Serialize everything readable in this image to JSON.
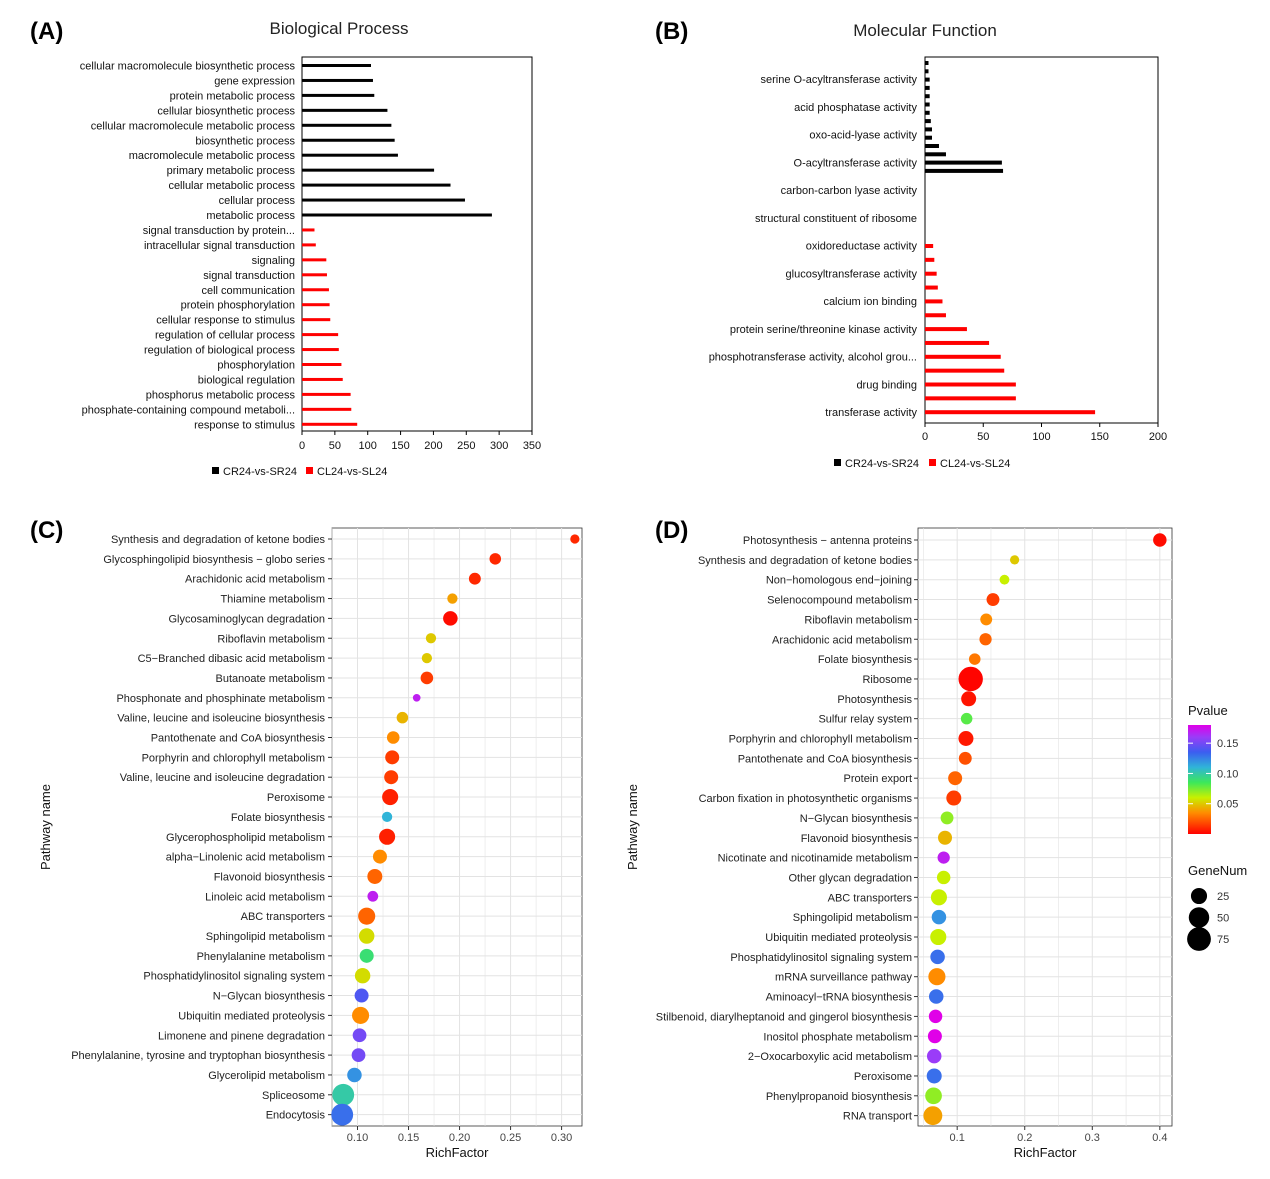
{
  "panels": [
    {
      "label": "(A)"
    },
    {
      "label": "(B)"
    },
    {
      "label": "(C)"
    },
    {
      "label": "(D)"
    }
  ],
  "chart_data": [
    {
      "type": "bar",
      "orientation": "horizontal",
      "title": "Biological Process",
      "xlabel": "",
      "ylabel": "",
      "xlim": [
        0,
        350
      ],
      "xticks": [
        0,
        50,
        100,
        150,
        200,
        250,
        300,
        350
      ],
      "legend": {
        "position": "bottom",
        "entries": [
          "CR24-vs-SR24",
          "CL24-vs-SL24"
        ]
      },
      "series": [
        {
          "name": "CR24-vs-SR24",
          "color": "#000000",
          "categories": [
            "cellular macromolecule biosynthetic process",
            "gene expression",
            "protein metabolic process",
            "cellular biosynthetic process",
            "cellular macromolecule metabolic process",
            "biosynthetic process",
            "macromolecule metabolic process",
            "primary metabolic process",
            "cellular metabolic process",
            "cellular process",
            "metabolic process"
          ],
          "values": [
            105,
            108,
            110,
            130,
            136,
            141,
            146,
            201,
            226,
            248,
            289
          ]
        },
        {
          "name": "CL24-vs-SL24",
          "color": "#ff0000",
          "categories": [
            "signal transduction by protein...",
            "intracellular signal transduction",
            "signaling",
            "signal transduction",
            "cell communication",
            "protein phosphorylation",
            "cellular response to stimulus",
            "regulation of cellular process",
            "regulation of biological process",
            "phosphorylation",
            "biological regulation",
            "phosphorus metabolic process",
            "phosphate-containing compound metaboli...",
            "response to stimulus"
          ],
          "values": [
            19,
            21,
            37,
            38,
            41,
            42,
            43,
            55,
            56,
            60,
            62,
            74,
            75,
            84
          ]
        }
      ]
    },
    {
      "type": "bar",
      "orientation": "horizontal",
      "title": "Molecular Function",
      "xlabel": "",
      "ylabel": "",
      "xlim": [
        0,
        200
      ],
      "xticks": [
        0,
        50,
        100,
        150,
        200
      ],
      "tick_labels": [
        "serine O-acyltransferase activity",
        "acid phosphatase activity",
        "oxo-acid-lyase activity",
        "O-acyltransferase activity",
        "carbon-carbon lyase activity",
        "structural constituent of ribosome",
        "oxidoreductase activity",
        "glucosyltransferase activity",
        "calcium ion binding",
        "protein serine/threonine kinase activity",
        "phosphotransferase activity, alcohol grou...",
        "drug binding",
        "transferase activity"
      ],
      "legend": {
        "position": "bottom",
        "entries": [
          "CR24-vs-SR24",
          "CL24-vs-SL24"
        ]
      },
      "series": [
        {
          "name": "CR24-vs-SR24",
          "color": "#000000",
          "values": [
            3,
            3,
            4,
            4,
            4,
            4,
            4,
            5,
            6,
            6,
            12,
            18,
            66,
            67
          ]
        },
        {
          "name": "CL24-vs-SL24",
          "color": "#ff0000",
          "values": [
            7,
            8,
            10,
            11,
            15,
            18,
            36,
            55,
            65,
            68,
            78,
            78,
            146
          ]
        }
      ]
    },
    {
      "type": "scatter",
      "xlabel": "RichFactor",
      "ylabel": "Pathway name",
      "xlim": [
        0.075,
        0.32
      ],
      "xticks": [
        0.1,
        0.15,
        0.2,
        0.25,
        0.3
      ],
      "xtick_labels": [
        "0.10",
        "0.15",
        "0.20",
        "0.25",
        "0.30"
      ],
      "points": [
        {
          "pathway": "Synthesis and degradation of ketone bodies",
          "x": 0.313,
          "pvalue": 0.01,
          "genes": 3
        },
        {
          "pathway": "Glycosphingolipid biosynthesis − globo series",
          "x": 0.235,
          "pvalue": 0.01,
          "genes": 8
        },
        {
          "pathway": "Arachidonic acid metabolism",
          "x": 0.215,
          "pvalue": 0.01,
          "genes": 9
        },
        {
          "pathway": "Thiamine metabolism",
          "x": 0.193,
          "pvalue": 0.04,
          "genes": 5
        },
        {
          "pathway": "Glycosaminoglycan degradation",
          "x": 0.191,
          "pvalue": 0.003,
          "genes": 18
        },
        {
          "pathway": "Riboflavin metabolism",
          "x": 0.172,
          "pvalue": 0.05,
          "genes": 5
        },
        {
          "pathway": "C5−Branched dibasic acid metabolism",
          "x": 0.168,
          "pvalue": 0.05,
          "genes": 5
        },
        {
          "pathway": "Butanoate metabolism",
          "x": 0.168,
          "pvalue": 0.015,
          "genes": 11
        },
        {
          "pathway": "Phosphonate and phosphinate metabolism",
          "x": 0.158,
          "pvalue": 0.17,
          "genes": 1
        },
        {
          "pathway": "Valine, leucine and isoleucine biosynthesis",
          "x": 0.144,
          "pvalue": 0.045,
          "genes": 8
        },
        {
          "pathway": "Pantothenate and CoA biosynthesis",
          "x": 0.135,
          "pvalue": 0.035,
          "genes": 11
        },
        {
          "pathway": "Porphyrin and chlorophyll metabolism",
          "x": 0.134,
          "pvalue": 0.015,
          "genes": 16
        },
        {
          "pathway": "Valine, leucine and isoleucine degradation",
          "x": 0.133,
          "pvalue": 0.015,
          "genes": 16
        },
        {
          "pathway": "Peroxisome",
          "x": 0.132,
          "pvalue": 0.008,
          "genes": 25
        },
        {
          "pathway": "Folate biosynthesis",
          "x": 0.129,
          "pvalue": 0.11,
          "genes": 5
        },
        {
          "pathway": "Glycerophospholipid metabolism",
          "x": 0.129,
          "pvalue": 0.008,
          "genes": 25
        },
        {
          "pathway": "alpha−Linolenic acid metabolism",
          "x": 0.122,
          "pvalue": 0.035,
          "genes": 16
        },
        {
          "pathway": "Flavonoid biosynthesis",
          "x": 0.117,
          "pvalue": 0.025,
          "genes": 20
        },
        {
          "pathway": "Linoleic acid metabolism",
          "x": 0.115,
          "pvalue": 0.17,
          "genes": 6
        },
        {
          "pathway": "ABC transporters",
          "x": 0.109,
          "pvalue": 0.025,
          "genes": 30
        },
        {
          "pathway": "Sphingolipid metabolism",
          "x": 0.109,
          "pvalue": 0.055,
          "genes": 22
        },
        {
          "pathway": "Phenylalanine metabolism",
          "x": 0.109,
          "pvalue": 0.09,
          "genes": 16
        },
        {
          "pathway": "Phosphatidylinositol signaling system",
          "x": 0.105,
          "pvalue": 0.055,
          "genes": 22
        },
        {
          "pathway": "N−Glycan biosynthesis",
          "x": 0.104,
          "pvalue": 0.14,
          "genes": 16
        },
        {
          "pathway": "Ubiquitin mediated proteolysis",
          "x": 0.103,
          "pvalue": 0.035,
          "genes": 30
        },
        {
          "pathway": "Limonene and pinene degradation",
          "x": 0.102,
          "pvalue": 0.15,
          "genes": 15
        },
        {
          "pathway": "Phenylalanine, tyrosine and tryptophan biosynthesis",
          "x": 0.101,
          "pvalue": 0.15,
          "genes": 15
        },
        {
          "pathway": "Glycerolipid metabolism",
          "x": 0.097,
          "pvalue": 0.12,
          "genes": 18
        },
        {
          "pathway": "Spliceosome",
          "x": 0.086,
          "pvalue": 0.1,
          "genes": 60
        },
        {
          "pathway": "Endocytosis",
          "x": 0.085,
          "pvalue": 0.13,
          "genes": 60
        }
      ]
    },
    {
      "type": "scatter",
      "xlabel": "RichFactor",
      "ylabel": "Pathway name",
      "xlim": [
        0.042,
        0.418
      ],
      "xticks": [
        0.1,
        0.2,
        0.3,
        0.4
      ],
      "xtick_labels": [
        "0.1",
        "0.2",
        "0.3",
        "0.4"
      ],
      "points": [
        {
          "pathway": "Photosynthesis − antenna proteins",
          "x": 0.4,
          "pvalue": 0.003,
          "genes": 14
        },
        {
          "pathway": "Synthesis and degradation of ketone bodies",
          "x": 0.185,
          "pvalue": 0.05,
          "genes": 3
        },
        {
          "pathway": "Non−homologous end−joining",
          "x": 0.17,
          "pvalue": 0.06,
          "genes": 4
        },
        {
          "pathway": "Selenocompound metabolism",
          "x": 0.153,
          "pvalue": 0.015,
          "genes": 12
        },
        {
          "pathway": "Riboflavin metabolism",
          "x": 0.143,
          "pvalue": 0.035,
          "genes": 9
        },
        {
          "pathway": "Arachidonic acid metabolism",
          "x": 0.142,
          "pvalue": 0.025,
          "genes": 10
        },
        {
          "pathway": "Folate biosynthesis",
          "x": 0.126,
          "pvalue": 0.03,
          "genes": 8
        },
        {
          "pathway": "Ribosome",
          "x": 0.12,
          "pvalue": 0.001,
          "genes": 80
        },
        {
          "pathway": "Photosynthesis",
          "x": 0.117,
          "pvalue": 0.005,
          "genes": 20
        },
        {
          "pathway": "Sulfur relay system",
          "x": 0.114,
          "pvalue": 0.08,
          "genes": 8
        },
        {
          "pathway": "Porphyrin and chlorophyll metabolism",
          "x": 0.113,
          "pvalue": 0.006,
          "genes": 20
        },
        {
          "pathway": "Pantothenate and CoA biosynthesis",
          "x": 0.112,
          "pvalue": 0.02,
          "genes": 12
        },
        {
          "pathway": "Protein export",
          "x": 0.097,
          "pvalue": 0.025,
          "genes": 16
        },
        {
          "pathway": "Carbon fixation in photosynthetic organisms",
          "x": 0.095,
          "pvalue": 0.015,
          "genes": 20
        },
        {
          "pathway": "N−Glycan biosynthesis",
          "x": 0.085,
          "pvalue": 0.07,
          "genes": 12
        },
        {
          "pathway": "Flavonoid biosynthesis",
          "x": 0.082,
          "pvalue": 0.045,
          "genes": 16
        },
        {
          "pathway": "Nicotinate and nicotinamide metabolism",
          "x": 0.08,
          "pvalue": 0.17,
          "genes": 10
        },
        {
          "pathway": "Other glycan degradation",
          "x": 0.08,
          "pvalue": 0.06,
          "genes": 14
        },
        {
          "pathway": "ABC transporters",
          "x": 0.073,
          "pvalue": 0.06,
          "genes": 25
        },
        {
          "pathway": "Sphingolipid metabolism",
          "x": 0.073,
          "pvalue": 0.12,
          "genes": 18
        },
        {
          "pathway": "Ubiquitin mediated proteolysis",
          "x": 0.072,
          "pvalue": 0.06,
          "genes": 25
        },
        {
          "pathway": "Phosphatidylinositol signaling system",
          "x": 0.071,
          "pvalue": 0.13,
          "genes": 18
        },
        {
          "pathway": "mRNA surveillance pathway",
          "x": 0.07,
          "pvalue": 0.035,
          "genes": 30
        },
        {
          "pathway": "Aminoacyl−tRNA biosynthesis",
          "x": 0.069,
          "pvalue": 0.13,
          "genes": 18
        },
        {
          "pathway": "Stilbenoid, diarylheptanoid and gingerol biosynthesis",
          "x": 0.068,
          "pvalue": 0.18,
          "genes": 14
        },
        {
          "pathway": "Inositol phosphate metabolism",
          "x": 0.067,
          "pvalue": 0.18,
          "genes": 16
        },
        {
          "pathway": "2−Oxocarboxylic acid metabolism",
          "x": 0.066,
          "pvalue": 0.16,
          "genes": 18
        },
        {
          "pathway": "Peroxisome",
          "x": 0.066,
          "pvalue": 0.13,
          "genes": 20
        },
        {
          "pathway": "Phenylpropanoid biosynthesis",
          "x": 0.065,
          "pvalue": 0.07,
          "genes": 28
        },
        {
          "pathway": "RNA transport",
          "x": 0.064,
          "pvalue": 0.04,
          "genes": 40
        }
      ]
    }
  ],
  "legends": {
    "pvalue": {
      "title": "Pvalue",
      "ticks": [
        "0.15",
        "0.10",
        "0.05"
      ],
      "tick_values": [
        0.15,
        0.1,
        0.05
      ],
      "range": [
        0,
        0.18
      ]
    },
    "genenum": {
      "title": "GeneNum",
      "sizes": [
        25,
        50,
        75
      ],
      "labels": [
        "25",
        "50",
        "75"
      ]
    }
  }
}
